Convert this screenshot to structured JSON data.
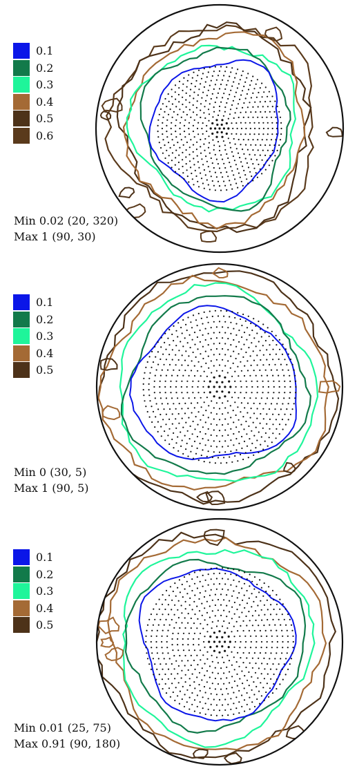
{
  "colors": {
    "0.1": "#0b16e8",
    "0.2": "#127a4a",
    "0.3": "#1ff59a",
    "0.4": "#a46a35",
    "0.5": "#4d3219",
    "0.6": "#5a3a1c",
    "outline": "#111111",
    "points": "#111111"
  },
  "chart_data": [
    {
      "type": "contour",
      "projection": "polar",
      "legend": [
        {
          "label": "0.1",
          "color": "#0b16e8"
        },
        {
          "label": "0.2",
          "color": "#127a4a"
        },
        {
          "label": "0.3",
          "color": "#1ff59a"
        },
        {
          "label": "0.4",
          "color": "#a46a35"
        },
        {
          "label": "0.5",
          "color": "#4d3219"
        },
        {
          "label": "0.6",
          "color": "#5a3a1c"
        }
      ],
      "levels": [
        0.1,
        0.2,
        0.3,
        0.4,
        0.5,
        0.6
      ],
      "stats": {
        "min_line": "Min 0.02 (20, 320)",
        "max_line": "Max 1 (90, 30)"
      },
      "min": {
        "value": 0.02,
        "location": [
          20,
          320
        ]
      },
      "max": {
        "value": 1,
        "location": [
          90,
          30
        ]
      },
      "grid_points": true
    },
    {
      "type": "contour",
      "projection": "polar",
      "legend": [
        {
          "label": "0.1",
          "color": "#0b16e8"
        },
        {
          "label": "0.2",
          "color": "#127a4a"
        },
        {
          "label": "0.3",
          "color": "#1ff59a"
        },
        {
          "label": "0.4",
          "color": "#a46a35"
        },
        {
          "label": "0.5",
          "color": "#4d3219"
        }
      ],
      "levels": [
        0.1,
        0.2,
        0.3,
        0.4,
        0.5
      ],
      "stats": {
        "min_line": "Min 0 (30, 5)",
        "max_line": "Max 1 (90, 5)"
      },
      "min": {
        "value": 0,
        "location": [
          30,
          5
        ]
      },
      "max": {
        "value": 1,
        "location": [
          90,
          5
        ]
      },
      "grid_points": true
    },
    {
      "type": "contour",
      "projection": "polar",
      "legend": [
        {
          "label": "0.1",
          "color": "#0b16e8"
        },
        {
          "label": "0.2",
          "color": "#127a4a"
        },
        {
          "label": "0.3",
          "color": "#1ff59a"
        },
        {
          "label": "0.4",
          "color": "#a46a35"
        },
        {
          "label": "0.5",
          "color": "#4d3219"
        }
      ],
      "levels": [
        0.1,
        0.2,
        0.3,
        0.4,
        0.5
      ],
      "stats": {
        "min_line": "Min 0.01 (25, 75)",
        "max_line": "Max 0.91 (90, 180)"
      },
      "min": {
        "value": 0.01,
        "location": [
          25,
          75
        ]
      },
      "max": {
        "value": 0.91,
        "location": [
          90,
          180
        ]
      },
      "grid_points": true
    }
  ]
}
